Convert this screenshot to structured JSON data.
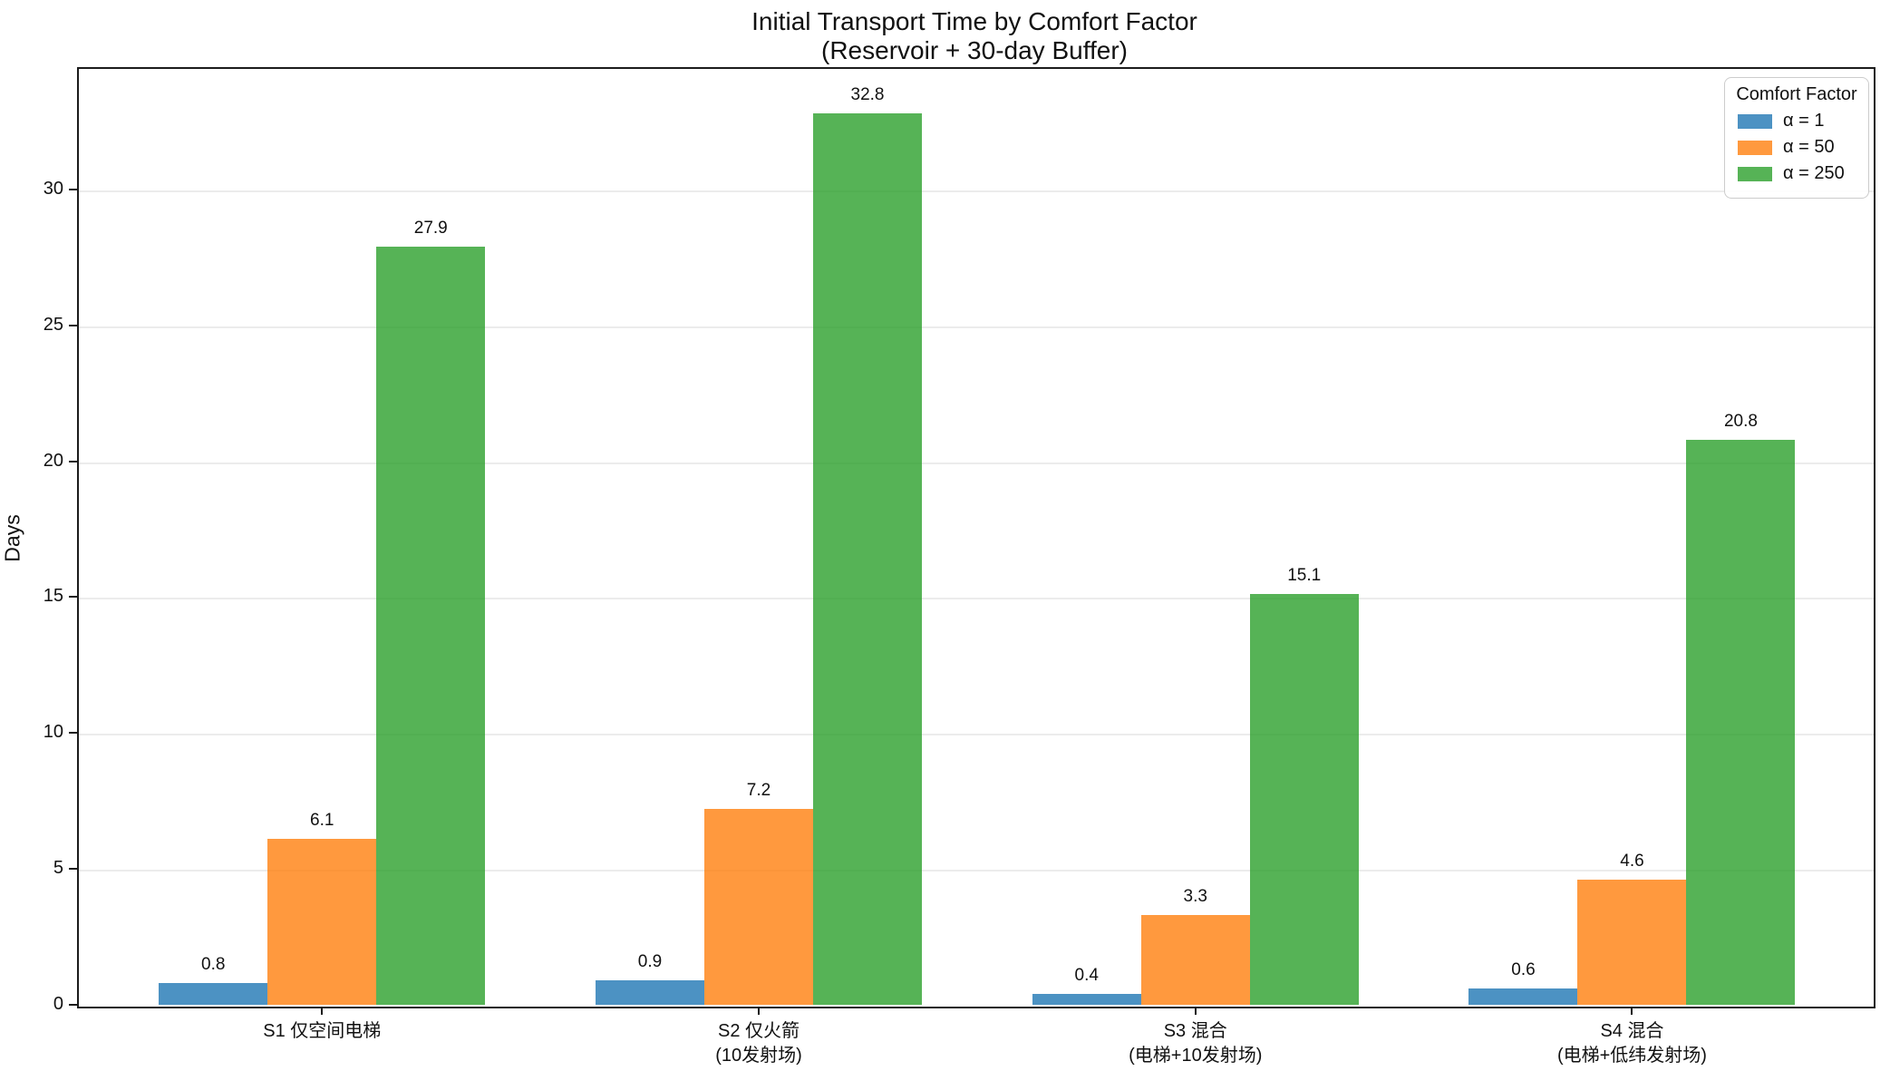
{
  "figure": {
    "title": "Initial Transport Time by Comfort Factor",
    "subtitle": "(Reservoir + 30-day Buffer)",
    "ylabel": "Days"
  },
  "legend": {
    "title": "Comfort Factor",
    "position": "upper right",
    "entries": [
      {
        "label": "α = 1",
        "color": "#1f77b4"
      },
      {
        "label": "α = 50",
        "color": "#ff7f0e"
      },
      {
        "label": "α = 250",
        "color": "#2ca02c"
      }
    ]
  },
  "chart_data": {
    "type": "bar",
    "title": "Initial Transport Time by Comfort Factor",
    "subtitle": "(Reservoir + 30-day Buffer)",
    "xlabel": "",
    "ylabel": "Days",
    "categories": [
      [
        "S1 仅空间电梯"
      ],
      [
        "S2 仅火箭",
        "(10发射场)"
      ],
      [
        "S3 混合",
        "(电梯+10发射场)"
      ],
      [
        "S4 混合",
        "(电梯+低纬发射场)"
      ]
    ],
    "series": [
      {
        "name": "α = 1",
        "color": "#1f77b4",
        "values": [
          0.8,
          0.9,
          0.4,
          0.6
        ]
      },
      {
        "name": "α = 50",
        "color": "#ff7f0e",
        "values": [
          6.1,
          7.2,
          3.3,
          4.6
        ]
      },
      {
        "name": "α = 250",
        "color": "#2ca02c",
        "values": [
          27.9,
          32.8,
          15.1,
          20.8
        ]
      }
    ],
    "value_labels": true,
    "bar_alpha": 0.8,
    "yticks": [
      0,
      5,
      10,
      15,
      20,
      25,
      30
    ],
    "ylim": [
      0,
      34.5
    ],
    "grid": true,
    "legend_title": "Comfort Factor",
    "legend_position": "upper right"
  }
}
